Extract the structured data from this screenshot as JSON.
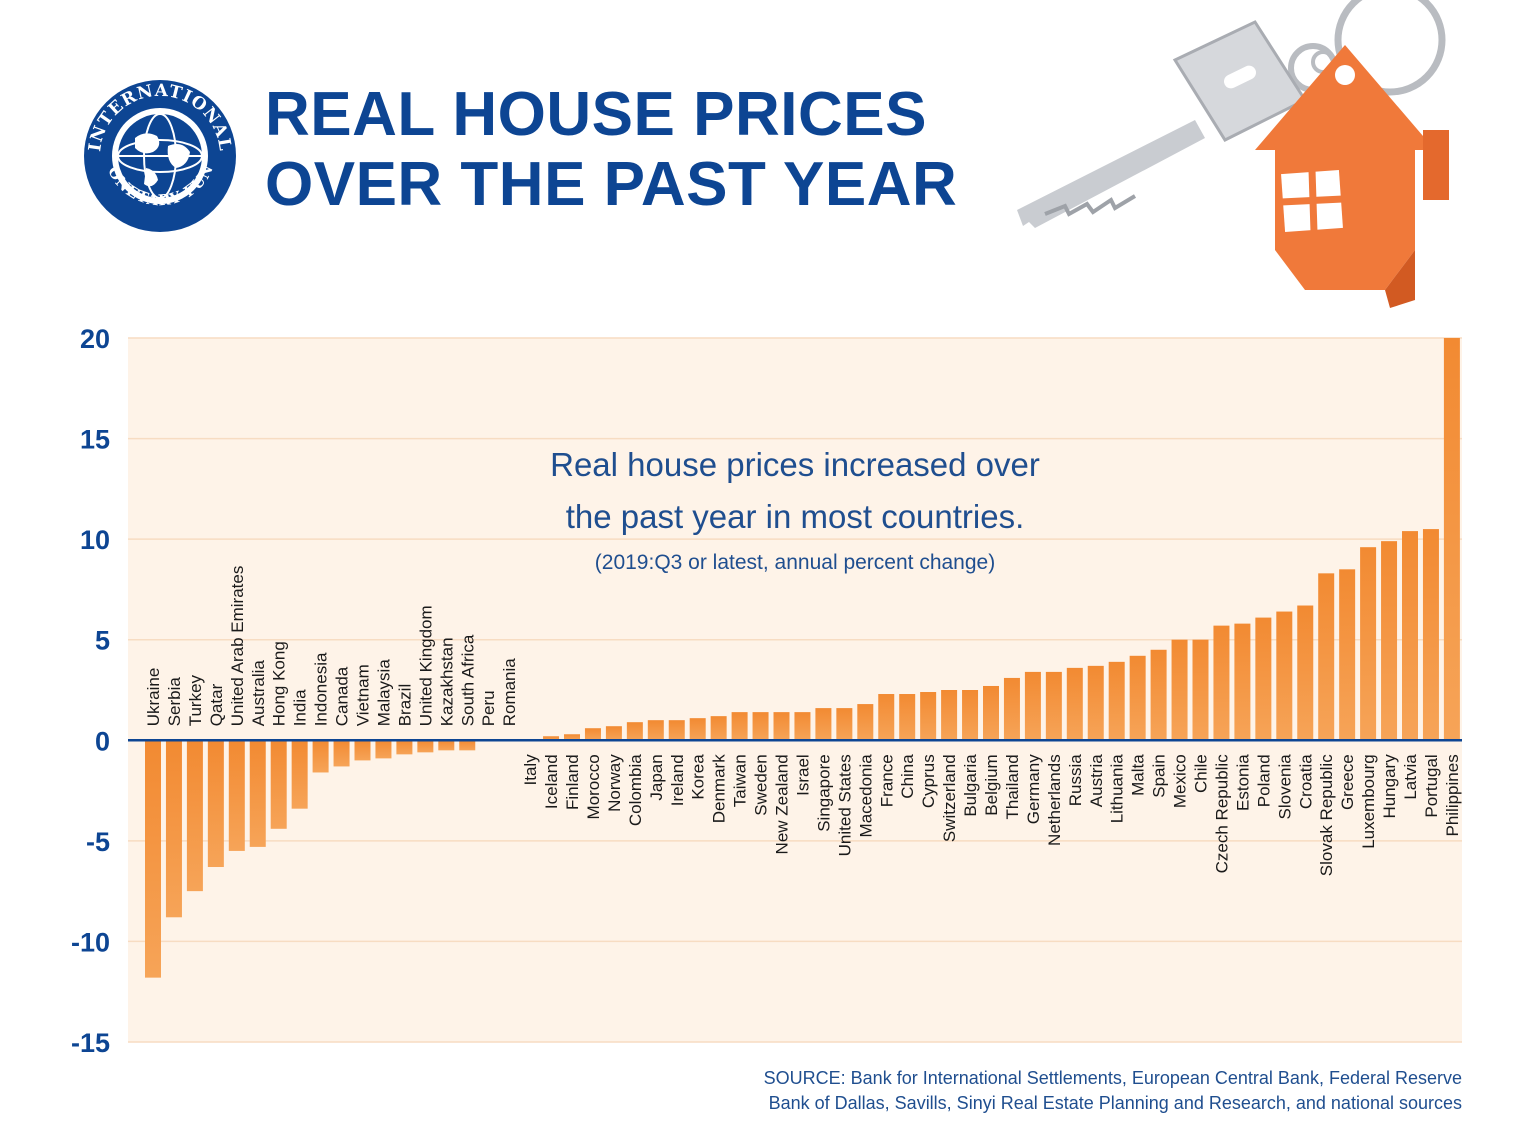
{
  "header": {
    "title_line1": "REAL HOUSE PRICES",
    "title_line2": "OVER THE PAST YEAR",
    "logo_text": "INTERNATIONAL MONETARY FUND"
  },
  "colors": {
    "accent_navy": "#0d4593",
    "bar_orange": "#f28a32",
    "plot_bg": "#fef3e8",
    "house_orange": "#f0793a"
  },
  "icons": [
    "imf-seal-icon",
    "house-key-icon"
  ],
  "chart_data": {
    "type": "bar",
    "title": "Real house prices increased over the past year in most countries.",
    "subtitle": "(2019:Q3 or latest, annual percent change)",
    "xlabel": "",
    "ylabel": "",
    "ylim": [
      -15,
      20
    ],
    "yticks": [
      20,
      15,
      10,
      5,
      0,
      -5,
      -10,
      -15
    ],
    "grid": true,
    "legend": "none",
    "categories": [
      "Ukraine",
      "Serbia",
      "Turkey",
      "Qatar",
      "United Arab Emirates",
      "Australia",
      "Hong Kong",
      "India",
      "Indonesia",
      "Canada",
      "Vietnam",
      "Malaysia",
      "Brazil",
      "United Kingdom",
      "Kazakhstan",
      "South Africa",
      "Peru",
      "Romania",
      "Italy",
      "Iceland",
      "Finland",
      "Morocco",
      "Norway",
      "Colombia",
      "Japan",
      "Ireland",
      "Korea",
      "Denmark",
      "Taiwan",
      "Sweden",
      "New Zealand",
      "Israel",
      "Singapore",
      "United States",
      "Macedonia",
      "France",
      "China",
      "Cyprus",
      "Switzerland",
      "Bulgaria",
      "Belgium",
      "Thailand",
      "Germany",
      "Netherlands",
      "Russia",
      "Austria",
      "Lithuania",
      "Malta",
      "Spain",
      "Mexico",
      "Chile",
      "Czech Republic",
      "Estonia",
      "Poland",
      "Slovenia",
      "Croatia",
      "Slovak Republic",
      "Greece",
      "Luxembourg",
      "Hungary",
      "Latvia",
      "Portugal",
      "Philippines"
    ],
    "values": [
      -11.8,
      -8.8,
      -7.5,
      -6.3,
      -5.5,
      -5.3,
      -4.4,
      -3.4,
      -1.6,
      -1.3,
      -1.0,
      -0.9,
      -0.7,
      -0.6,
      -0.5,
      -0.5,
      0.0,
      0.0,
      0.05,
      0.2,
      0.3,
      0.6,
      0.7,
      0.9,
      1.0,
      1.0,
      1.1,
      1.2,
      1.4,
      1.4,
      1.4,
      1.4,
      1.6,
      1.6,
      1.8,
      2.3,
      2.3,
      2.4,
      2.5,
      2.5,
      2.7,
      3.1,
      3.4,
      3.4,
      3.6,
      3.7,
      3.9,
      4.2,
      4.5,
      5.0,
      5.0,
      5.7,
      5.8,
      6.1,
      6.4,
      6.7,
      8.3,
      8.5,
      9.6,
      9.9,
      10.4,
      10.5,
      20.0
    ]
  },
  "source": {
    "line1": "SOURCE: Bank for International Settlements, European Central Bank, Federal Reserve",
    "line2": "Bank of Dallas, Savills, Sinyi Real Estate Planning and Research, and national sources"
  }
}
